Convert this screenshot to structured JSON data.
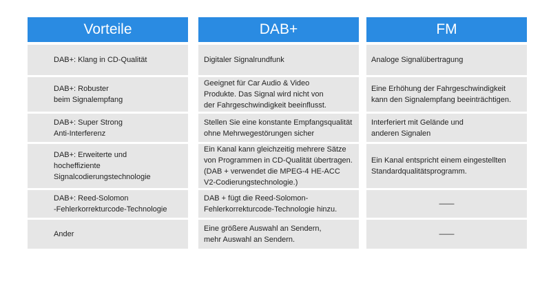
{
  "table": {
    "headers": [
      "Vorteile",
      "DAB+",
      "FM"
    ],
    "rows": [
      [
        "DAB+: Klang in CD-Qualität",
        "Digitaler Signalrundfunk",
        "Analoge Signalübertragung"
      ],
      [
        "DAB+: Robuster\nbeim Signalempfang",
        "Geeignet für Car Audio & Video\nProdukte. Das Signal wird nicht von\nder Fahrgeschwindigkeit beeinflusst.",
        "Eine Erhöhung der Fahrgeschwindigkeit\nkann den Signalempfang beeinträchtigen."
      ],
      [
        "DAB+: Super Strong\nAnti-Interferenz",
        "Stellen Sie eine konstante Empfangsqualität\nohne Mehrwegestörungen sicher",
        "Interferiert mit Gelände und\nanderen Signalen"
      ],
      [
        "DAB+: Erweiterte und\nhocheffiziente\nSignalcodierungstechnologie",
        "Ein Kanal kann gleichzeitig mehrere Sätze\nvon Programmen in CD-Qualität übertragen.\n(DAB + verwendet die MPEG-4 HE-ACC\nV2-Codierungstechnologie.)",
        "Ein Kanal entspricht einem eingestellten\nStandardqualitätsprogramm."
      ],
      [
        "DAB+: Reed-Solomon\n-Fehlerkorrekturcode-Technologie",
        "DAB + fügt die Reed-Solomon-\nFehlerkorrekturcode-Technologie hinzu.",
        "——"
      ],
      [
        "Ander",
        "Eine größere Auswahl an Sendern,\nmehr Auswahl an Sendern.",
        "——"
      ]
    ]
  }
}
